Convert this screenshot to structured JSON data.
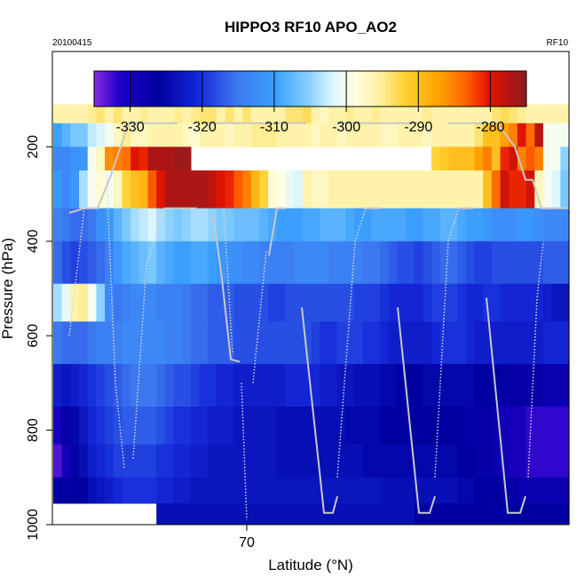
{
  "chart_data": {
    "type": "heatmap",
    "title": "HIPPO3 RF10 APO_AO2",
    "date_label": "20100415",
    "flight_label": "RF10",
    "xlabel": "Latitude (°N)",
    "ylabel": "Pressure (hPa)",
    "x_ticks": [
      "70"
    ],
    "y_ticks": [
      "200",
      "400",
      "600",
      "800",
      "1000"
    ],
    "ylim": [
      1000,
      0
    ],
    "colorbar": {
      "min": -335,
      "max": -275,
      "tick_values": [
        -330,
        -320,
        -310,
        -300,
        -290,
        -280
      ],
      "tick_labels": [
        "-330",
        "-320",
        "-310",
        "-300",
        "-290",
        "-280"
      ]
    },
    "pressure_bands": [
      {
        "p_top": 110,
        "p_bot": 150,
        "values": [
          -296,
          -296,
          -296,
          -296,
          -295,
          -294,
          -296,
          -294,
          -296,
          -296,
          -295,
          -296,
          -296,
          -296,
          -295,
          -296,
          -295,
          -294,
          -294,
          -296,
          -294,
          -296,
          -294,
          -296,
          -296,
          -296,
          -296,
          -294,
          -294,
          -293,
          -296,
          -297,
          -296,
          -296,
          -295,
          -296,
          -296,
          -295,
          -296,
          -296,
          -296,
          -296,
          -296,
          -295,
          -296,
          -296,
          -296,
          -296,
          -296,
          -296,
          -296,
          -294,
          -293,
          -294,
          -295,
          -296,
          -296,
          -296,
          -296,
          -296
        ]
      },
      {
        "p_top": 150,
        "p_bot": 200,
        "values": [
          -310,
          -308,
          -306,
          -306,
          -303,
          -302,
          -300,
          -297,
          -295,
          -297,
          -297,
          -296,
          -296,
          -296,
          -296,
          -297,
          -298,
          -296,
          -296,
          -296,
          -297,
          -296,
          -296,
          -295,
          -295,
          -295,
          -296,
          -296,
          -296,
          -296,
          -297,
          -296,
          -296,
          -297,
          -296,
          -296,
          -296,
          -296,
          -297,
          -297,
          -296,
          -296,
          -296,
          -297,
          -296,
          -296,
          -296,
          -296,
          -296,
          -294,
          -290,
          -290,
          -287,
          -285,
          -280,
          -284,
          -278,
          -300,
          -300,
          -300
        ]
      },
      {
        "p_top": 200,
        "p_bot": 250,
        "values": [
          -313,
          -313,
          -312,
          -311,
          -300,
          -297,
          -286,
          -285,
          -284,
          -280,
          -281,
          -277,
          -277,
          -277,
          -276,
          -276,
          null,
          null,
          null,
          null,
          null,
          null,
          null,
          null,
          null,
          null,
          null,
          null,
          null,
          null,
          null,
          null,
          null,
          null,
          null,
          null,
          null,
          null,
          null,
          null,
          null,
          null,
          null,
          null,
          -292,
          -291,
          -290,
          -290,
          -290,
          -287,
          -285,
          -290,
          -281,
          -279,
          -285,
          -283,
          -285,
          -300,
          -300,
          -305
        ]
      },
      {
        "p_top": 250,
        "p_bot": 330,
        "values": [
          -311,
          -313,
          -311,
          -304,
          -300,
          -298,
          -300,
          -297,
          -292,
          -290,
          -289,
          -283,
          -280,
          -277,
          -277,
          -277,
          -277,
          -277,
          -278,
          -280,
          -281,
          -283,
          -285,
          -289,
          -292,
          -298,
          -299,
          -301,
          -302,
          -296,
          -297,
          -297,
          -296,
          -296,
          -296,
          -296,
          -296,
          -296,
          -296,
          -296,
          -296,
          -296,
          -296,
          -296,
          -296,
          -296,
          -296,
          -296,
          -296,
          -296,
          -290,
          -284,
          -279,
          -281,
          -281,
          -279,
          -297,
          -300,
          -302,
          -306
        ]
      },
      {
        "p_top": 330,
        "p_bot": 400,
        "values": [
          -314,
          -315,
          -316,
          -316,
          -315,
          -312,
          -311,
          -308,
          -306,
          -304,
          -303,
          -302,
          -304,
          -305,
          -306,
          -305,
          -304,
          -304,
          -305,
          -306,
          -306,
          -307,
          -307,
          -307,
          -308,
          -309,
          -310,
          -310,
          -310,
          -309,
          -309,
          -308,
          -308,
          -308,
          -309,
          -310,
          -310,
          -309,
          -309,
          -309,
          -309,
          -310,
          -310,
          -309,
          -309,
          -308,
          -308,
          -309,
          -310,
          -310,
          -311,
          -312,
          -312,
          -312,
          -311,
          -311,
          -312,
          -313,
          -313,
          -313
        ]
      },
      {
        "p_top": 400,
        "p_bot": 490,
        "values": [
          -316,
          -318,
          -319,
          -318,
          -317,
          -316,
          -314,
          -311,
          -309,
          -308,
          -307,
          -306,
          -308,
          -309,
          -310,
          -310,
          -309,
          -309,
          -310,
          -311,
          -312,
          -312,
          -313,
          -313,
          -314,
          -314,
          -314,
          -314,
          -313,
          -313,
          -313,
          -313,
          -314,
          -314,
          -314,
          -314,
          -315,
          -315,
          -316,
          -317,
          -318,
          -318,
          -319,
          -318,
          -317,
          -316,
          -316,
          -317,
          -318,
          -319,
          -319,
          -318,
          -318,
          -318,
          -318,
          -318,
          -318,
          -317,
          -317,
          -317
        ]
      },
      {
        "p_top": 490,
        "p_bot": 570,
        "values": [
          -304,
          -301,
          -296,
          -295,
          -300,
          -305,
          -313,
          -315,
          -314,
          -313,
          -313,
          -313,
          -314,
          -314,
          -314,
          -315,
          -316,
          -316,
          -317,
          -317,
          -317,
          -318,
          -318,
          -318,
          -318,
          -319,
          -319,
          -318,
          -318,
          -318,
          -318,
          -318,
          -318,
          -318,
          -318,
          -319,
          -319,
          -319,
          -320,
          -321,
          -321,
          -321,
          -321,
          -320,
          -319,
          -319,
          -319,
          -320,
          -321,
          -321,
          -320,
          -320,
          -321,
          -321,
          -321,
          -321,
          -321,
          -322,
          -323,
          -323
        ]
      },
      {
        "p_top": 570,
        "p_bot": 660,
        "values": [
          -315,
          -316,
          -316,
          -316,
          -315,
          -314,
          -314,
          -314,
          -313,
          -313,
          -313,
          -313,
          -313,
          -314,
          -314,
          -315,
          -316,
          -316,
          -317,
          -317,
          -317,
          -318,
          -318,
          -318,
          -318,
          -318,
          -318,
          -318,
          -318,
          -318,
          -319,
          -320,
          -320,
          -319,
          -319,
          -319,
          -320,
          -320,
          -321,
          -322,
          -322,
          -322,
          -322,
          -322,
          -321,
          -320,
          -320,
          -320,
          -321,
          -322,
          -322,
          -322,
          -322,
          -322,
          -322,
          -322,
          -322,
          -321,
          -321,
          -321
        ]
      },
      {
        "p_top": 660,
        "p_bot": 750,
        "values": [
          -322,
          -323,
          -322,
          -321,
          -320,
          -319,
          -318,
          -317,
          -316,
          -315,
          -315,
          -315,
          -316,
          -317,
          -318,
          -318,
          -319,
          -320,
          -320,
          -321,
          -321,
          -322,
          -322,
          -322,
          -322,
          -322,
          -322,
          -321,
          -321,
          -321,
          -321,
          -322,
          -322,
          -323,
          -323,
          -324,
          -324,
          -324,
          -325,
          -325,
          -326,
          -326,
          -326,
          -325,
          -325,
          -325,
          -325,
          -325,
          -325,
          -326,
          -326,
          -326,
          -327,
          -327,
          -327,
          -327,
          -327,
          -328,
          -328,
          -328
        ]
      },
      {
        "p_top": 750,
        "p_bot": 830,
        "values": [
          -330,
          -327,
          -325,
          -323,
          -321,
          -320,
          -319,
          -318,
          -317,
          -317,
          -317,
          -317,
          -318,
          -319,
          -320,
          -320,
          -321,
          -321,
          -322,
          -322,
          -322,
          -323,
          -323,
          -323,
          -323,
          -323,
          -324,
          -324,
          -324,
          -324,
          -324,
          -324,
          -324,
          -324,
          -325,
          -325,
          -325,
          -325,
          -326,
          -326,
          -326,
          -326,
          -326,
          -326,
          -326,
          -326,
          -326,
          -326,
          -327,
          -327,
          -327,
          -328,
          -329,
          -330,
          -330,
          -332,
          -332,
          -332,
          -332,
          -332
        ]
      },
      {
        "p_top": 830,
        "p_bot": 900,
        "values": [
          -333,
          -329,
          -327,
          -324,
          -322,
          -321,
          -320,
          -319,
          -319,
          -319,
          -319,
          -319,
          -320,
          -320,
          -321,
          -321,
          -322,
          -322,
          -323,
          -323,
          -323,
          -323,
          -323,
          -323,
          -323,
          -323,
          -324,
          -324,
          -324,
          -324,
          -324,
          -324,
          -324,
          -324,
          -324,
          -324,
          -325,
          -325,
          -325,
          -325,
          -325,
          -325,
          -325,
          -325,
          -325,
          -325,
          -325,
          -326,
          -326,
          -327,
          -327,
          -328,
          -329,
          -330,
          -330,
          -332,
          -332,
          -332,
          -332,
          -332
        ]
      },
      {
        "p_top": 900,
        "p_bot": 955,
        "values": [
          -326,
          -326,
          -326,
          -326,
          -324,
          -323,
          -322,
          -321,
          -320,
          -320,
          -320,
          -320,
          -321,
          -321,
          -322,
          -322,
          -323,
          -323,
          -323,
          -323,
          -323,
          -323,
          -323,
          -323,
          -323,
          -323,
          -323,
          -323,
          -323,
          -323,
          -323,
          -323,
          -323,
          -323,
          -323,
          -323,
          -323,
          -323,
          -324,
          -324,
          -324,
          -324,
          -324,
          -324,
          -324,
          -324,
          -324,
          -325,
          -325,
          -326,
          -326,
          -326,
          -327,
          -327,
          -328,
          -328,
          -328,
          -328,
          -328,
          -328
        ]
      },
      {
        "p_top": 955,
        "p_bot": 1000,
        "values": [
          null,
          null,
          null,
          null,
          null,
          null,
          null,
          null,
          null,
          null,
          null,
          null,
          -324,
          -324,
          -324,
          -324,
          -324,
          -324,
          -324,
          -324,
          -324,
          -324,
          -324,
          -324,
          -324,
          -324,
          -324,
          -324,
          -324,
          -324,
          -324,
          -324,
          -324,
          -324,
          -324,
          -324,
          -324,
          -324,
          -324,
          -324,
          -324,
          -324,
          -326,
          -326,
          -326,
          -326,
          -326,
          -326,
          -326,
          -326,
          -326,
          -326,
          -326,
          -326,
          -326,
          -326,
          -326,
          -326,
          -326,
          -326
        ]
      }
    ],
    "flight_track_pressure_hPa": [
      340,
      250,
      150,
      150,
      150,
      150,
      150,
      150,
      150,
      150,
      150,
      150,
      150,
      150,
      150,
      150,
      150,
      150,
      150,
      150,
      150,
      150,
      150,
      150,
      150,
      150,
      160,
      260,
      300,
      340
    ]
  }
}
